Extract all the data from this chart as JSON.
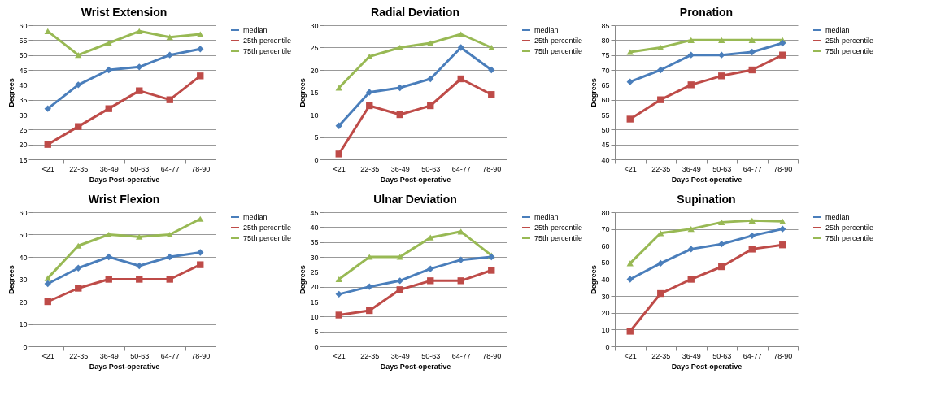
{
  "chart_data": [
    {
      "type": "line",
      "title": "Wrist Extension",
      "xlabel": "Days Post-operative",
      "ylabel": "Degrees",
      "categories": [
        "<21",
        "22-35",
        "36-49",
        "50-63",
        "64-77",
        "78-90"
      ],
      "ylim": [
        15,
        60
      ],
      "yticks": [
        15,
        20,
        25,
        30,
        35,
        40,
        45,
        50,
        55,
        60
      ],
      "grid": "y",
      "legend": "right",
      "series": [
        {
          "name": "median",
          "color": "#4a7ebb",
          "marker": "diamond",
          "values": [
            32,
            40,
            45,
            46,
            50,
            52
          ]
        },
        {
          "name": "25th percentile",
          "color": "#be4b48",
          "marker": "square",
          "values": [
            20,
            26,
            32,
            38,
            35,
            43
          ]
        },
        {
          "name": "75th percentile",
          "color": "#98b954",
          "marker": "triangle",
          "values": [
            58,
            50,
            54,
            58,
            56,
            57
          ]
        }
      ]
    },
    {
      "type": "line",
      "title": "Radial Deviation",
      "xlabel": "Days Post-operative",
      "ylabel": "Degrees",
      "categories": [
        "<21",
        "22-35",
        "36-49",
        "50-63",
        "64-77",
        "78-90"
      ],
      "ylim": [
        0,
        30
      ],
      "yticks": [
        0,
        5,
        10,
        15,
        20,
        25,
        30
      ],
      "grid": "y",
      "legend": "right",
      "series": [
        {
          "name": "median",
          "color": "#4a7ebb",
          "marker": "diamond",
          "values": [
            7.5,
            15,
            16,
            18,
            25,
            20
          ]
        },
        {
          "name": "25th percentile",
          "color": "#be4b48",
          "marker": "square",
          "values": [
            1.2,
            12,
            10,
            12,
            18,
            14.5
          ]
        },
        {
          "name": "75th percentile",
          "color": "#98b954",
          "marker": "triangle",
          "values": [
            16,
            23,
            25,
            26,
            28,
            25
          ]
        }
      ]
    },
    {
      "type": "line",
      "title": "Pronation",
      "xlabel": "Days Post-operative",
      "ylabel": "Degrees",
      "categories": [
        "<21",
        "22-35",
        "36-49",
        "50-63",
        "64-77",
        "78-90"
      ],
      "ylim": [
        40,
        85
      ],
      "yticks": [
        40,
        45,
        50,
        55,
        60,
        65,
        70,
        75,
        80,
        85
      ],
      "grid": "y",
      "legend": "right",
      "series": [
        {
          "name": "median",
          "color": "#4a7ebb",
          "marker": "diamond",
          "values": [
            66,
            70,
            75,
            75,
            76,
            79
          ]
        },
        {
          "name": "25th percentile",
          "color": "#be4b48",
          "marker": "square",
          "values": [
            53.5,
            60,
            65,
            68,
            70,
            75
          ]
        },
        {
          "name": "75th percentile",
          "color": "#98b954",
          "marker": "triangle",
          "values": [
            76,
            77.5,
            80,
            80,
            80,
            80
          ]
        }
      ]
    },
    {
      "type": "line",
      "title": "Wrist Flexion",
      "xlabel": "Days Post-operative",
      "ylabel": "Degrees",
      "categories": [
        "<21",
        "22-35",
        "36-49",
        "50-63",
        "64-77",
        "78-90"
      ],
      "ylim": [
        0,
        60
      ],
      "yticks": [
        0,
        10,
        20,
        30,
        40,
        50,
        60
      ],
      "grid": "y",
      "legend": "right",
      "series": [
        {
          "name": "median",
          "color": "#4a7ebb",
          "marker": "diamond",
          "values": [
            28,
            35,
            40,
            36,
            40,
            42
          ]
        },
        {
          "name": "25th percentile",
          "color": "#be4b48",
          "marker": "square",
          "values": [
            20,
            26,
            30,
            30,
            30,
            36.5
          ]
        },
        {
          "name": "75th percentile",
          "color": "#98b954",
          "marker": "triangle",
          "values": [
            30.5,
            45,
            50,
            49,
            50,
            57
          ]
        }
      ]
    },
    {
      "type": "line",
      "title": "Ulnar Deviation",
      "xlabel": "Days Post-operative",
      "ylabel": "Degrees",
      "categories": [
        "<21",
        "22-35",
        "36-49",
        "50-63",
        "64-77",
        "78-90"
      ],
      "ylim": [
        0,
        45
      ],
      "yticks": [
        0,
        5,
        10,
        15,
        20,
        25,
        30,
        35,
        40,
        45
      ],
      "grid": "y",
      "legend": "right",
      "series": [
        {
          "name": "median",
          "color": "#4a7ebb",
          "marker": "diamond",
          "values": [
            17.5,
            20,
            22,
            26,
            29,
            30
          ]
        },
        {
          "name": "25th percentile",
          "color": "#be4b48",
          "marker": "square",
          "values": [
            10.5,
            12,
            19,
            22,
            22,
            25.5
          ]
        },
        {
          "name": "75th percentile",
          "color": "#98b954",
          "marker": "triangle",
          "values": [
            22.5,
            30,
            30,
            36.5,
            38.5,
            30.5
          ]
        }
      ]
    },
    {
      "type": "line",
      "title": "Supination",
      "xlabel": "Days Post-operative",
      "ylabel": "Degrees",
      "categories": [
        "<21",
        "22-35",
        "36-49",
        "50-63",
        "64-77",
        "78-90"
      ],
      "ylim": [
        0,
        80
      ],
      "yticks": [
        0,
        10,
        20,
        30,
        40,
        50,
        60,
        70,
        80
      ],
      "grid": "y",
      "legend": "right",
      "series": [
        {
          "name": "median",
          "color": "#4a7ebb",
          "marker": "diamond",
          "values": [
            40,
            49.5,
            58,
            61,
            66,
            70
          ]
        },
        {
          "name": "25th percentile",
          "color": "#be4b48",
          "marker": "square",
          "values": [
            9,
            31.5,
            40,
            47.5,
            58,
            60.5
          ]
        },
        {
          "name": "75th percentile",
          "color": "#98b954",
          "marker": "triangle",
          "values": [
            49.5,
            67.5,
            70,
            74,
            75,
            74.5
          ]
        }
      ]
    }
  ]
}
